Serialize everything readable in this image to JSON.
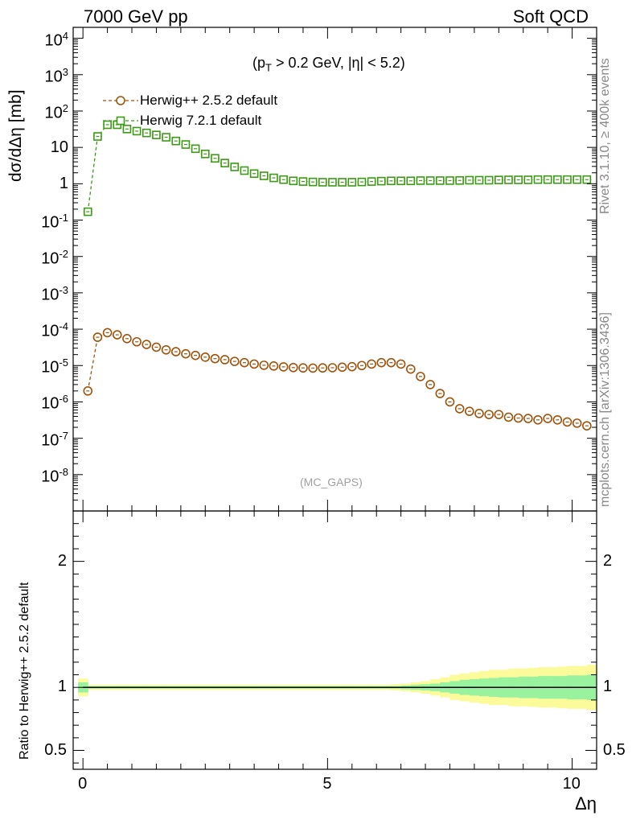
{
  "header": {
    "left_title": "7000 GeV pp",
    "right_title": "Soft QCD"
  },
  "side_text": {
    "rivet": "Rivet 3.1.10, ≥ 400k events",
    "mcplots": "mcplots.cern.ch [arXiv:1306.3436]"
  },
  "colors": {
    "herwig_old": "#a0520a",
    "herwig_new": "#3c9a14",
    "band_inner": "#99f29d",
    "band_outer": "#fbfb9c"
  },
  "chart_data": [
    {
      "type": "scatter",
      "panel": "main",
      "annotation": "(p_T > 0.2 GeV, |η| < 5.2)",
      "annotation_parts": {
        "p": "(p",
        "sub": "T",
        "rest": " > 0.2 GeV, |η| < 5.2)"
      },
      "watermark": "(MC_GAPS)",
      "ylabel": "dσ/dΔη [mb]",
      "yscale": "log",
      "ylim": [
        1e-09,
        20000.0
      ],
      "xlim": [
        -0.2,
        10.5
      ],
      "ytick_labels": [
        {
          "base": "10",
          "exp": "-8",
          "v": 1e-08
        },
        {
          "base": "10",
          "exp": "-7",
          "v": 1e-07
        },
        {
          "base": "10",
          "exp": "-6",
          "v": 1e-06
        },
        {
          "base": "10",
          "exp": "-5",
          "v": 1e-05
        },
        {
          "base": "10",
          "exp": "-4",
          "v": 0.0001
        },
        {
          "base": "10",
          "exp": "-3",
          "v": 0.001
        },
        {
          "base": "10",
          "exp": "-2",
          "v": 0.01
        },
        {
          "base": "10",
          "exp": "-1",
          "v": 0.1
        },
        {
          "base": "1",
          "exp": "",
          "v": 1
        },
        {
          "base": "10",
          "exp": "",
          "v": 10
        },
        {
          "base": "10",
          "exp": "2",
          "v": 100
        },
        {
          "base": "10",
          "exp": "3",
          "v": 1000
        },
        {
          "base": "10",
          "exp": "4",
          "v": 10000
        }
      ],
      "series": [
        {
          "name": "Herwig++ 2.5.2 default",
          "marker": "circle",
          "x": [
            0.1,
            0.3,
            0.5,
            0.7,
            0.9,
            1.1,
            1.3,
            1.5,
            1.7,
            1.9,
            2.1,
            2.3,
            2.5,
            2.7,
            2.9,
            3.1,
            3.3,
            3.5,
            3.7,
            3.9,
            4.1,
            4.3,
            4.5,
            4.7,
            4.9,
            5.1,
            5.3,
            5.5,
            5.7,
            5.9,
            6.1,
            6.3,
            6.5,
            6.7,
            6.9,
            7.1,
            7.3,
            7.5,
            7.7,
            7.9,
            8.1,
            8.3,
            8.5,
            8.7,
            8.9,
            9.1,
            9.3,
            9.5,
            9.7,
            9.9,
            10.1,
            10.3
          ],
          "y": [
            2e-06,
            6e-05,
            8e-05,
            7e-05,
            5.5e-05,
            4.5e-05,
            3.8e-05,
            3.2e-05,
            2.7e-05,
            2.4e-05,
            2.1e-05,
            1.9e-05,
            1.7e-05,
            1.55e-05,
            1.45e-05,
            1.3e-05,
            1.2e-05,
            1.1e-05,
            1.02e-05,
            9.7e-06,
            9.2e-06,
            8.8e-06,
            8.6e-06,
            8.5e-06,
            8.6e-06,
            8.7e-06,
            9e-06,
            9.3e-06,
            1e-05,
            1.1e-05,
            1.2e-05,
            1.2e-05,
            1.1e-05,
            8e-06,
            5e-06,
            3e-06,
            1.7e-06,
            1e-06,
            6.5e-07,
            5.5e-07,
            4.8e-07,
            4.5e-07,
            4.5e-07,
            3.8e-07,
            3.6e-07,
            3.5e-07,
            3.2e-07,
            3.5e-07,
            3.2e-07,
            2.8e-07,
            2.6e-07,
            2.2e-07
          ]
        },
        {
          "name": "Herwig 7.2.1 default",
          "marker": "square",
          "x": [
            0.1,
            0.3,
            0.5,
            0.7,
            0.9,
            1.1,
            1.3,
            1.5,
            1.7,
            1.9,
            2.1,
            2.3,
            2.5,
            2.7,
            2.9,
            3.1,
            3.3,
            3.5,
            3.7,
            3.9,
            4.1,
            4.3,
            4.5,
            4.7,
            4.9,
            5.1,
            5.3,
            5.5,
            5.7,
            5.9,
            6.1,
            6.3,
            6.5,
            6.7,
            6.9,
            7.1,
            7.3,
            7.5,
            7.7,
            7.9,
            8.1,
            8.3,
            8.5,
            8.7,
            8.9,
            9.1,
            9.3,
            9.5,
            9.7,
            9.9,
            10.1,
            10.3
          ],
          "y": [
            0.17,
            20,
            42,
            42,
            32,
            28,
            25,
            22,
            19,
            15,
            12,
            9.2,
            6.6,
            5.0,
            3.7,
            2.9,
            2.3,
            1.9,
            1.65,
            1.45,
            1.3,
            1.2,
            1.15,
            1.12,
            1.1,
            1.1,
            1.1,
            1.1,
            1.12,
            1.15,
            1.18,
            1.2,
            1.2,
            1.2,
            1.22,
            1.22,
            1.22,
            1.22,
            1.23,
            1.25,
            1.25,
            1.25,
            1.27,
            1.28,
            1.28,
            1.28,
            1.3,
            1.3,
            1.3,
            1.3,
            1.3,
            1.3
          ]
        }
      ]
    },
    {
      "type": "line",
      "panel": "ratio",
      "ylabel": "Ratio to Herwig++ 2.5.2 default",
      "xlabel": "Δη",
      "ylim": [
        0.35,
        2.4
      ],
      "xlim": [
        -0.2,
        10.5
      ],
      "ytick_labels": [
        "0.5",
        "1",
        "2"
      ],
      "ytick_values": [
        0.5,
        1,
        2
      ],
      "xtick_labels": [
        "0",
        "5",
        "10"
      ],
      "xtick_values": [
        0,
        5,
        10
      ],
      "reference_value": 1,
      "band_x": [
        0.0,
        0.2,
        0.4,
        0.6,
        0.8,
        1.0,
        1.2,
        1.4,
        1.6,
        1.8,
        2.0,
        2.2,
        2.4,
        2.6,
        2.8,
        3.0,
        3.2,
        3.4,
        3.6,
        3.8,
        4.0,
        4.2,
        4.4,
        4.6,
        4.8,
        5.0,
        5.2,
        5.4,
        5.6,
        5.8,
        6.0,
        6.2,
        6.4,
        6.6,
        6.8,
        7.0,
        7.2,
        7.4,
        7.6,
        7.8,
        8.0,
        8.2,
        8.4,
        8.6,
        8.8,
        9.0,
        9.2,
        9.4,
        9.6,
        9.8,
        10.0,
        10.2,
        10.4
      ],
      "band_inner_halfwidth": [
        0.04,
        0.01,
        0.01,
        0.01,
        0.01,
        0.01,
        0.01,
        0.01,
        0.01,
        0.01,
        0.01,
        0.01,
        0.01,
        0.01,
        0.01,
        0.01,
        0.01,
        0.01,
        0.01,
        0.01,
        0.01,
        0.01,
        0.01,
        0.01,
        0.01,
        0.01,
        0.01,
        0.01,
        0.01,
        0.01,
        0.01,
        0.01,
        0.01,
        0.015,
        0.02,
        0.025,
        0.03,
        0.04,
        0.05,
        0.06,
        0.065,
        0.07,
        0.075,
        0.08,
        0.08,
        0.085,
        0.085,
        0.09,
        0.09,
        0.09,
        0.095,
        0.095,
        0.1
      ],
      "band_outer_halfwidth": [
        0.07,
        0.02,
        0.02,
        0.02,
        0.02,
        0.02,
        0.02,
        0.02,
        0.02,
        0.02,
        0.02,
        0.02,
        0.02,
        0.02,
        0.02,
        0.02,
        0.02,
        0.02,
        0.02,
        0.02,
        0.02,
        0.02,
        0.02,
        0.02,
        0.02,
        0.02,
        0.02,
        0.02,
        0.02,
        0.02,
        0.02,
        0.02,
        0.025,
        0.03,
        0.04,
        0.05,
        0.065,
        0.08,
        0.1,
        0.11,
        0.12,
        0.13,
        0.14,
        0.14,
        0.15,
        0.15,
        0.155,
        0.16,
        0.16,
        0.165,
        0.17,
        0.17,
        0.18
      ]
    }
  ]
}
